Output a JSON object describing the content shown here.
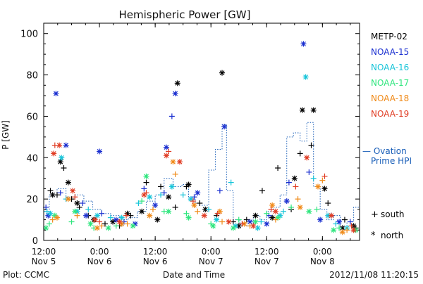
{
  "chart_data": {
    "type": "scatter",
    "title": "Hemispheric Power [GW]",
    "xlabel": "Date and Time",
    "ylabel": "P [GW]",
    "ylim": [
      0,
      105
    ],
    "xlim": [
      0,
      2.833
    ],
    "yticks": [
      0,
      20,
      40,
      60,
      80,
      100
    ],
    "xticks": [
      {
        "x": 0.0,
        "time": "12:00",
        "date": "Nov 5"
      },
      {
        "x": 0.5,
        "time": "0:00",
        "date": "Nov 6"
      },
      {
        "x": 1.0,
        "time": "12:00",
        "date": "Nov 6"
      },
      {
        "x": 1.5,
        "time": "0:00",
        "date": "Nov 7"
      },
      {
        "x": 2.0,
        "time": "12:00",
        "date": "Nov 7"
      },
      {
        "x": 2.5,
        "time": "0:00",
        "date": "Nov 8"
      }
    ],
    "x_unit_note": "x in days from 2012-11-05 12:00 UT",
    "legend_placement": "right",
    "marker_legend": [
      {
        "marker": "+",
        "label": "south"
      },
      {
        "marker": "*",
        "label": "north"
      }
    ],
    "series": [
      {
        "name": "METP-02",
        "color": "#000000",
        "south": [
          [
            0.06,
            24
          ],
          [
            0.12,
            22
          ],
          [
            0.18,
            35
          ],
          [
            0.25,
            20
          ],
          [
            0.32,
            16
          ],
          [
            0.4,
            12
          ],
          [
            0.55,
            8
          ],
          [
            0.68,
            7
          ],
          [
            0.78,
            12
          ],
          [
            0.92,
            28
          ],
          [
            1.05,
            26
          ],
          [
            1.18,
            16
          ],
          [
            1.28,
            26
          ],
          [
            1.4,
            18
          ],
          [
            1.55,
            12
          ],
          [
            1.7,
            9
          ],
          [
            1.82,
            10
          ],
          [
            1.96,
            24
          ],
          [
            2.1,
            35
          ],
          [
            2.22,
            15
          ],
          [
            2.3,
            42
          ],
          [
            2.4,
            46
          ],
          [
            2.55,
            18
          ],
          [
            2.7,
            10
          ],
          [
            2.8,
            6
          ]
        ],
        "north": [
          [
            0.08,
            22
          ],
          [
            0.15,
            38
          ],
          [
            0.22,
            28
          ],
          [
            0.3,
            18
          ],
          [
            0.45,
            10
          ],
          [
            0.62,
            9
          ],
          [
            0.75,
            13
          ],
          [
            0.88,
            14
          ],
          [
            1.02,
            10
          ],
          [
            1.12,
            21
          ],
          [
            1.2,
            76
          ],
          [
            1.3,
            27
          ],
          [
            1.45,
            15
          ],
          [
            1.6,
            81
          ],
          [
            1.75,
            7
          ],
          [
            1.9,
            12
          ],
          [
            2.05,
            11
          ],
          [
            2.25,
            30
          ],
          [
            2.32,
            63
          ],
          [
            2.42,
            63
          ],
          [
            2.52,
            25
          ],
          [
            2.68,
            6
          ],
          [
            2.78,
            7
          ]
        ]
      },
      {
        "name": "NOAA-15",
        "color": "#1a2fd0",
        "south": [
          [
            0.02,
            16
          ],
          [
            0.15,
            23
          ],
          [
            0.35,
            18
          ],
          [
            0.52,
            13
          ],
          [
            0.72,
            9
          ],
          [
            0.9,
            25
          ],
          [
            1.08,
            23
          ],
          [
            1.15,
            60
          ],
          [
            1.35,
            21
          ],
          [
            1.58,
            24
          ],
          [
            1.78,
            8
          ],
          [
            2.02,
            12
          ],
          [
            2.2,
            28
          ],
          [
            2.38,
            33
          ],
          [
            2.58,
            12
          ],
          [
            2.75,
            9
          ]
        ],
        "north": [
          [
            0.04,
            12
          ],
          [
            0.11,
            71
          ],
          [
            0.2,
            46
          ],
          [
            0.38,
            12
          ],
          [
            0.5,
            43
          ],
          [
            0.65,
            10
          ],
          [
            0.82,
            8
          ],
          [
            1.0,
            17
          ],
          [
            1.1,
            45
          ],
          [
            1.18,
            71
          ],
          [
            1.38,
            23
          ],
          [
            1.62,
            55
          ],
          [
            1.85,
            9
          ],
          [
            2.0,
            8
          ],
          [
            2.18,
            19
          ],
          [
            2.33,
            95
          ],
          [
            2.48,
            10
          ],
          [
            2.65,
            9
          ]
        ]
      },
      {
        "name": "NOAA-16",
        "color": "#16c4d9",
        "south": [
          [
            0.03,
            14
          ],
          [
            0.2,
            20
          ],
          [
            0.4,
            15
          ],
          [
            0.6,
            11
          ],
          [
            0.85,
            18
          ],
          [
            1.05,
            22
          ],
          [
            1.25,
            22
          ],
          [
            1.48,
            15
          ],
          [
            1.68,
            28
          ],
          [
            1.95,
            9
          ],
          [
            2.15,
            14
          ],
          [
            2.42,
            30
          ],
          [
            2.62,
            8
          ]
        ],
        "north": [
          [
            0.06,
            13
          ],
          [
            0.16,
            40
          ],
          [
            0.3,
            14
          ],
          [
            0.48,
            12
          ],
          [
            0.7,
            11
          ],
          [
            0.95,
            21
          ],
          [
            1.15,
            26
          ],
          [
            1.32,
            20
          ],
          [
            1.55,
            10
          ],
          [
            1.72,
            7
          ],
          [
            1.92,
            6
          ],
          [
            2.12,
            12
          ],
          [
            2.35,
            79
          ],
          [
            2.55,
            12
          ],
          [
            2.72,
            6
          ]
        ]
      },
      {
        "name": "NOAA-17",
        "color": "#2ee67d",
        "south": [
          [
            0.05,
            8
          ],
          [
            0.25,
            9
          ],
          [
            0.45,
            6
          ],
          [
            0.65,
            7
          ],
          [
            0.88,
            19
          ],
          [
            1.08,
            14
          ],
          [
            1.28,
            13
          ],
          [
            1.5,
            8
          ],
          [
            1.75,
            10
          ],
          [
            2.0,
            13
          ],
          [
            2.22,
            16
          ],
          [
            2.45,
            15
          ],
          [
            2.65,
            6
          ]
        ],
        "north": [
          [
            0.02,
            6
          ],
          [
            0.1,
            12
          ],
          [
            0.28,
            14
          ],
          [
            0.42,
            8
          ],
          [
            0.58,
            6
          ],
          [
            0.8,
            7
          ],
          [
            0.92,
            31
          ],
          [
            1.12,
            14
          ],
          [
            1.3,
            11
          ],
          [
            1.52,
            7
          ],
          [
            1.7,
            6
          ],
          [
            1.9,
            9
          ],
          [
            2.1,
            11
          ],
          [
            2.38,
            14
          ],
          [
            2.6,
            5
          ],
          [
            2.8,
            5
          ]
        ]
      },
      {
        "name": "NOAA-18",
        "color": "#f08a18",
        "south": [
          [
            0.08,
            10
          ],
          [
            0.3,
            12
          ],
          [
            0.52,
            7
          ],
          [
            0.75,
            8
          ],
          [
            0.98,
            15
          ],
          [
            1.18,
            32
          ],
          [
            1.38,
            14
          ],
          [
            1.6,
            9
          ],
          [
            1.85,
            7
          ],
          [
            2.08,
            10
          ],
          [
            2.28,
            20
          ],
          [
            2.5,
            29
          ],
          [
            2.72,
            5
          ]
        ],
        "north": [
          [
            0.12,
            11
          ],
          [
            0.22,
            20
          ],
          [
            0.48,
            6
          ],
          [
            0.7,
            8
          ],
          [
            0.95,
            12
          ],
          [
            1.16,
            38
          ],
          [
            1.35,
            17
          ],
          [
            1.58,
            14
          ],
          [
            1.8,
            8
          ],
          [
            2.05,
            17
          ],
          [
            2.3,
            16
          ],
          [
            2.46,
            26
          ],
          [
            2.68,
            4
          ]
        ]
      },
      {
        "name": "NOAA-19",
        "color": "#e03b22",
        "south": [
          [
            0.1,
            46
          ],
          [
            0.28,
            21
          ],
          [
            0.5,
            9
          ],
          [
            0.74,
            12
          ],
          [
            0.92,
            23
          ],
          [
            1.12,
            43
          ],
          [
            1.34,
            19
          ],
          [
            1.56,
            13
          ],
          [
            1.78,
            8
          ],
          [
            2.04,
            15
          ],
          [
            2.26,
            26
          ],
          [
            2.52,
            31
          ],
          [
            2.76,
            7
          ]
        ],
        "north": [
          [
            0.09,
            42
          ],
          [
            0.14,
            46
          ],
          [
            0.26,
            24
          ],
          [
            0.46,
            10
          ],
          [
            0.68,
            9
          ],
          [
            0.9,
            22
          ],
          [
            1.1,
            41
          ],
          [
            1.22,
            38
          ],
          [
            1.44,
            12
          ],
          [
            1.66,
            9
          ],
          [
            1.88,
            7
          ],
          [
            2.08,
            14
          ],
          [
            2.36,
            40
          ],
          [
            2.58,
            12
          ],
          [
            2.78,
            5
          ]
        ]
      }
    ],
    "ovation": {
      "name": "— Ovation Prime HPI",
      "color": "#1a5fb8",
      "points": [
        [
          0.0,
          14
        ],
        [
          0.05,
          22
        ],
        [
          0.12,
          25
        ],
        [
          0.2,
          21
        ],
        [
          0.28,
          22
        ],
        [
          0.36,
          19
        ],
        [
          0.44,
          15
        ],
        [
          0.52,
          13
        ],
        [
          0.6,
          12
        ],
        [
          0.68,
          10
        ],
        [
          0.76,
          11
        ],
        [
          0.84,
          14
        ],
        [
          0.92,
          19
        ],
        [
          1.0,
          22
        ],
        [
          1.08,
          30
        ],
        [
          1.16,
          26
        ],
        [
          1.24,
          27
        ],
        [
          1.3,
          20
        ],
        [
          1.36,
          18
        ],
        [
          1.42,
          17
        ],
        [
          1.48,
          34
        ],
        [
          1.54,
          44
        ],
        [
          1.6,
          56
        ],
        [
          1.64,
          24
        ],
        [
          1.7,
          10
        ],
        [
          1.76,
          8
        ],
        [
          1.82,
          7
        ],
        [
          1.88,
          12
        ],
        [
          1.94,
          10
        ],
        [
          2.0,
          14
        ],
        [
          2.06,
          16
        ],
        [
          2.12,
          22
        ],
        [
          2.18,
          50
        ],
        [
          2.24,
          52
        ],
        [
          2.3,
          48
        ],
        [
          2.36,
          57
        ],
        [
          2.42,
          26
        ],
        [
          2.48,
          15
        ],
        [
          2.54,
          10
        ],
        [
          2.6,
          12
        ],
        [
          2.66,
          6
        ],
        [
          2.72,
          9
        ],
        [
          2.78,
          16
        ],
        [
          2.833,
          12
        ]
      ]
    }
  },
  "footer": {
    "plot_credit": "Plot: CCMC",
    "timestamp": "2012/11/08 11:20:15"
  }
}
